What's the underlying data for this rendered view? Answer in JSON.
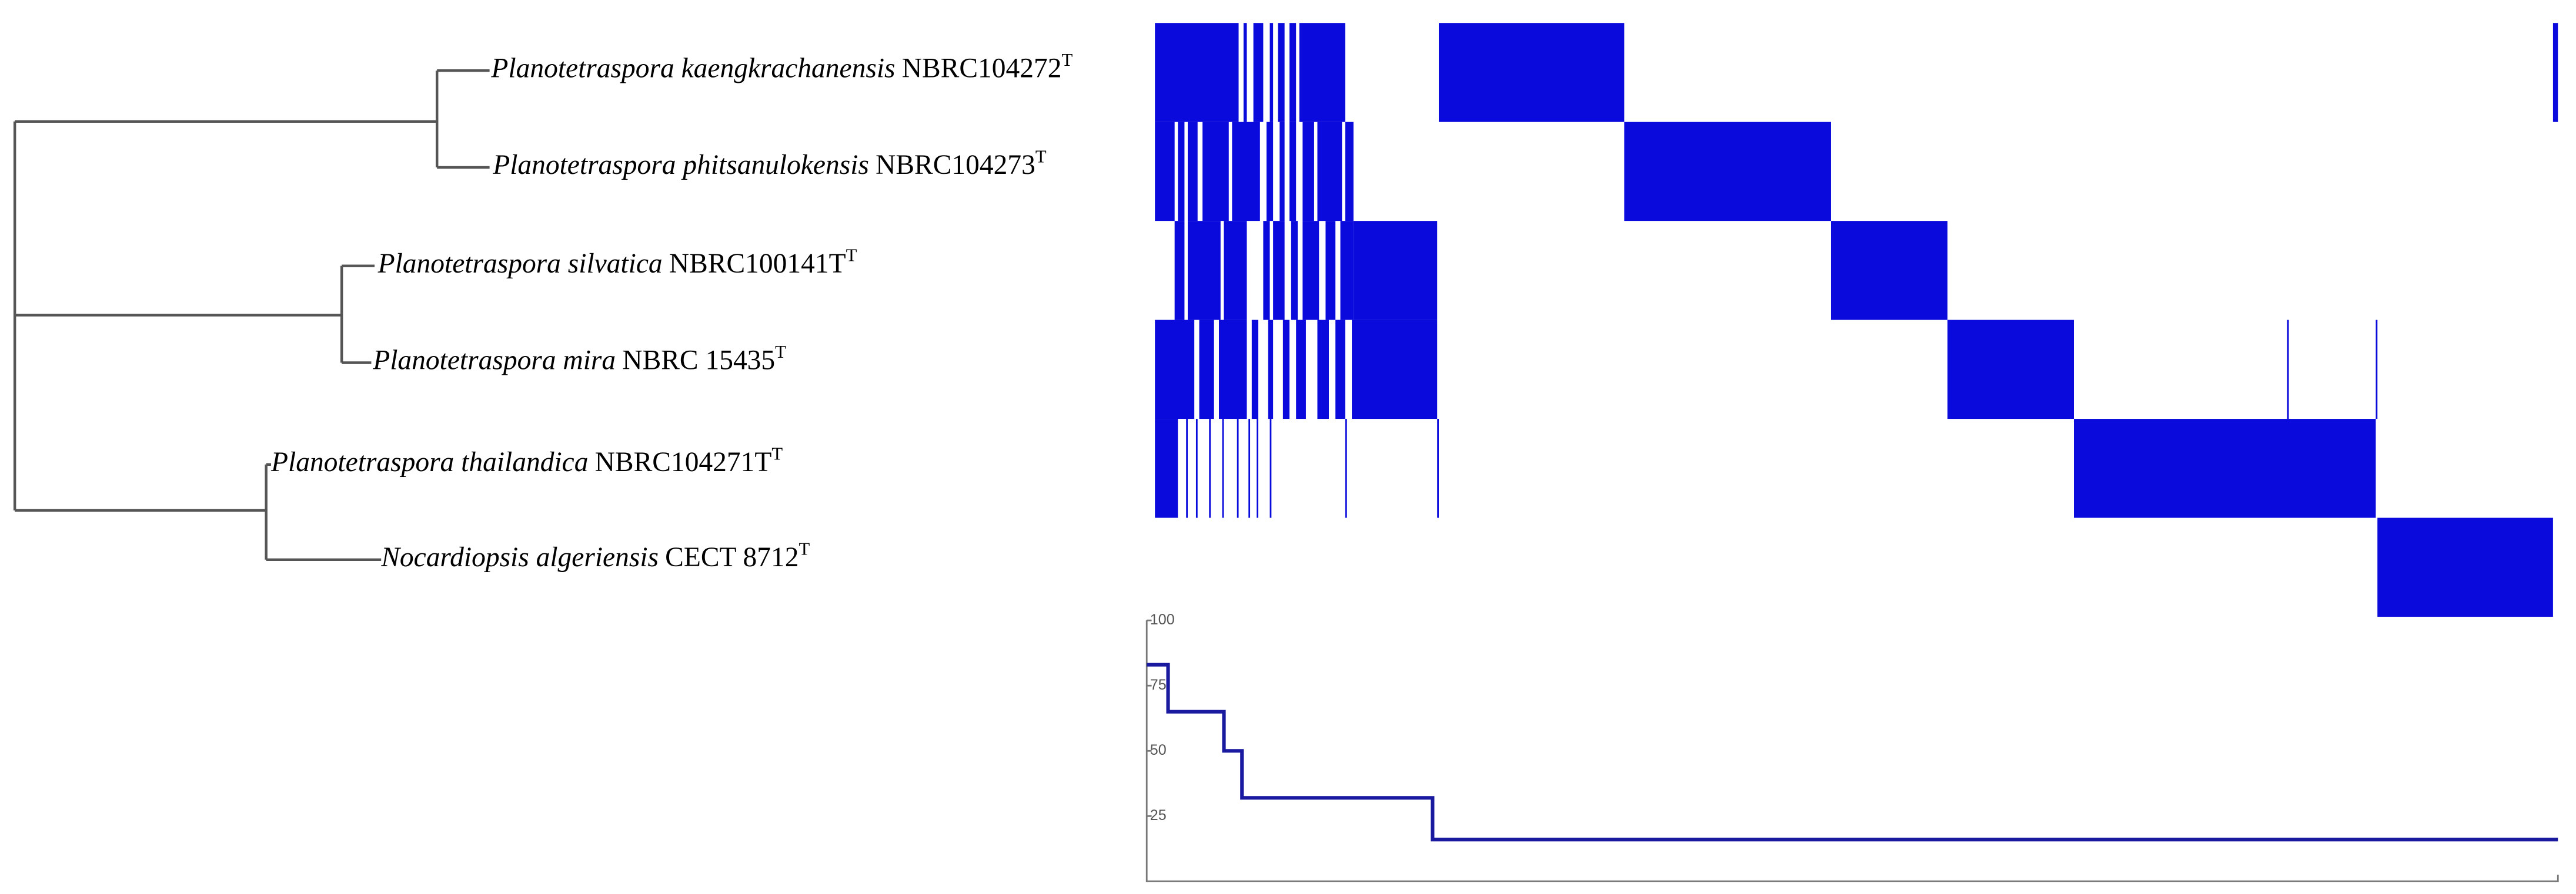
{
  "tree": {
    "leaves": [
      {
        "species": "Planotetraspora kaengkrachanensis",
        "strain": "NBRC104272",
        "superscript": "T"
      },
      {
        "species": "Planotetraspora phitsanulokensis",
        "strain": "NBRC104273",
        "superscript": "T"
      },
      {
        "species": "Planotetraspora silvatica",
        "strain": "NBRC100141T",
        "superscript": "T"
      },
      {
        "species": "Planotetraspora mira",
        "strain": "NBRC 15435",
        "superscript": "T"
      },
      {
        "species": "Planotetraspora thailandica",
        "strain": "NBRC104271T",
        "superscript": "T"
      },
      {
        "species": "Nocardiopsis algeriensis",
        "strain": "CECT 8712",
        "superscript": "T"
      }
    ]
  },
  "chart_data": [
    {
      "type": "heatmap",
      "color": "#0a0adc",
      "xlim": [
        0,
        855
      ],
      "segments": [
        [
          [
            0,
            51
          ],
          [
            54,
            56
          ],
          [
            60,
            66
          ],
          [
            70,
            72
          ],
          [
            75,
            79
          ],
          [
            82,
            86
          ],
          [
            88,
            116
          ],
          [
            173,
            286
          ],
          [
            852,
            855
          ]
        ],
        [
          [
            0,
            12
          ],
          [
            14,
            18
          ],
          [
            20,
            26
          ],
          [
            29,
            45
          ],
          [
            47,
            64
          ],
          [
            68,
            72
          ],
          [
            76,
            79
          ],
          [
            82,
            86
          ],
          [
            90,
            97
          ],
          [
            99,
            114
          ],
          [
            116,
            121
          ],
          [
            286,
            412
          ]
        ],
        [
          [
            12,
            18
          ],
          [
            20,
            40
          ],
          [
            42,
            56
          ],
          [
            66,
            70
          ],
          [
            72,
            79
          ],
          [
            83,
            87
          ],
          [
            90,
            100
          ],
          [
            104,
            110
          ],
          [
            113,
            121
          ],
          [
            121,
            172
          ],
          [
            412,
            483
          ]
        ],
        [
          [
            0,
            24
          ],
          [
            27,
            36
          ],
          [
            39,
            56
          ],
          [
            59,
            63
          ],
          [
            69,
            72
          ],
          [
            78,
            82
          ],
          [
            86,
            92
          ],
          [
            99,
            106
          ],
          [
            110,
            116
          ],
          [
            120,
            172
          ],
          [
            483,
            560
          ],
          [
            690,
            691
          ],
          [
            744,
            745
          ]
        ],
        [
          [
            0,
            14
          ],
          [
            19,
            20
          ],
          [
            25,
            26
          ],
          [
            33,
            34
          ],
          [
            41,
            42
          ],
          [
            50,
            51
          ],
          [
            57,
            58
          ],
          [
            62,
            63
          ],
          [
            70,
            71
          ],
          [
            116,
            117
          ],
          [
            172,
            173
          ],
          [
            560,
            744
          ]
        ],
        [
          [
            745,
            852
          ]
        ]
      ]
    },
    {
      "type": "line",
      "color": "#1a1aa0",
      "xlim": [
        0,
        859
      ],
      "ylim": [
        0,
        100
      ],
      "yticks": [
        25,
        50,
        75,
        100
      ],
      "x": [
        0,
        13,
        13,
        47,
        47,
        58,
        58,
        174,
        174,
        859
      ],
      "values": [
        83,
        83,
        65,
        65,
        50,
        50,
        32,
        32,
        16,
        16
      ]
    }
  ]
}
